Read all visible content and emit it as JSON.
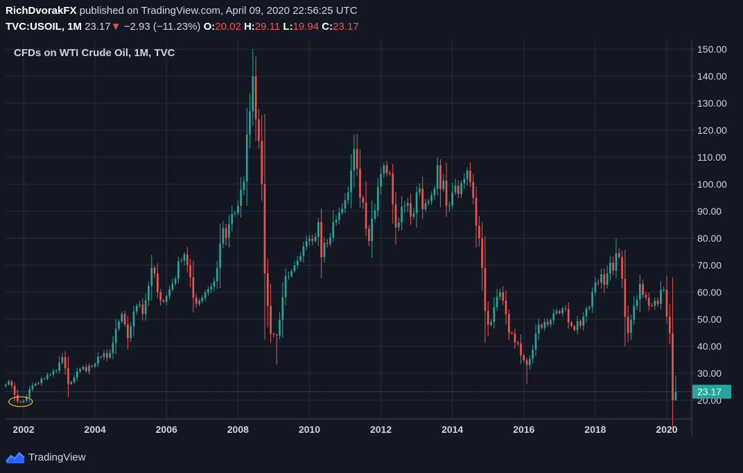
{
  "header": {
    "author": "RichDvorakFX",
    "published_text": "published on TradingView.com, April 09, 2020 22:56:25 UTC",
    "symbol": "TVC:USOIL, 1M",
    "last": "23.17",
    "change_arrow": "▼",
    "change": "−2.93 (−11.23%)",
    "open_label": "O:",
    "open_value": "20.02",
    "high_label": "H:",
    "high_value": "29.11",
    "low_label": "L:",
    "low_value": "19.94",
    "close_label": "C:",
    "close_value": "23.17"
  },
  "footer": {
    "brand": "TradingView",
    "logo_icon": "tradingview-logo-icon"
  },
  "colors": {
    "background": "#131722",
    "up": "#26a69a",
    "down": "#ef5350",
    "grid": "#2a2e39",
    "text": "#d1d4dc",
    "price_line": "#26a69a",
    "annotation_ellipse": "#f0c419"
  },
  "chart_data": {
    "type": "candlestick",
    "title": "CFDs on WTI Crude Oil, 1M, TVC",
    "interval": "monthly",
    "x_range": [
      "2001-07",
      "2020-08"
    ],
    "ylim": [
      13,
      154
    ],
    "y_ticks": [
      20,
      30,
      40,
      50,
      60,
      70,
      80,
      90,
      100,
      110,
      120,
      130,
      140,
      150
    ],
    "y_tick_labels": [
      "20.00",
      "30.00",
      "40.00",
      "50.00",
      "60.00",
      "70.00",
      "80.00",
      "90.00",
      "100.00",
      "110.00",
      "120.00",
      "130.00",
      "140.00",
      "150.00"
    ],
    "x_ticks": [
      "2002",
      "2004",
      "2006",
      "2008",
      "2010",
      "2012",
      "2014",
      "2016",
      "2018",
      "2020"
    ],
    "last_price": 23.17,
    "last_price_label": "23.17",
    "grid": true,
    "annotation": {
      "type": "ellipse",
      "around": "2001-11 to 2002-01 lows (~17–19)"
    },
    "anchors": [
      [
        "2001-08",
        27
      ],
      [
        "2001-10",
        22
      ],
      [
        "2001-11",
        19.5
      ],
      [
        "2002-01",
        19.8
      ],
      [
        "2002-04",
        25.5
      ],
      [
        "2002-08",
        28
      ],
      [
        "2002-12",
        31
      ],
      [
        "2003-02",
        36
      ],
      [
        "2003-04",
        26
      ],
      [
        "2003-08",
        31.5
      ],
      [
        "2003-12",
        32.5
      ],
      [
        "2004-03",
        36
      ],
      [
        "2004-06",
        37.5
      ],
      [
        "2004-10",
        52
      ],
      [
        "2004-12",
        43
      ],
      [
        "2005-03",
        55
      ],
      [
        "2005-05",
        52
      ],
      [
        "2005-08",
        69
      ],
      [
        "2005-11",
        57
      ],
      [
        "2006-02",
        61
      ],
      [
        "2006-07",
        74
      ],
      [
        "2006-10",
        58
      ],
      [
        "2007-01",
        58
      ],
      [
        "2007-05",
        64
      ],
      [
        "2007-07",
        78
      ],
      [
        "2007-11",
        89
      ],
      [
        "2008-01",
        92
      ],
      [
        "2008-03",
        101
      ],
      [
        "2008-05",
        127
      ],
      [
        "2008-06",
        140
      ],
      [
        "2008-07",
        124
      ],
      [
        "2008-08",
        116
      ],
      [
        "2008-09",
        100
      ],
      [
        "2008-10",
        67
      ],
      [
        "2008-11",
        55
      ],
      [
        "2008-12",
        44.6
      ],
      [
        "2009-02",
        44
      ],
      [
        "2009-05",
        66
      ],
      [
        "2009-08",
        70
      ],
      [
        "2009-12",
        79
      ],
      [
        "2010-02",
        79
      ],
      [
        "2010-04",
        86
      ],
      [
        "2010-05",
        73
      ],
      [
        "2010-07",
        78
      ],
      [
        "2010-12",
        91
      ],
      [
        "2011-02",
        97
      ],
      [
        "2011-04",
        113
      ],
      [
        "2011-06",
        95
      ],
      [
        "2011-09",
        79
      ],
      [
        "2011-12",
        99
      ],
      [
        "2012-02",
        107
      ],
      [
        "2012-04",
        104
      ],
      [
        "2012-06",
        84
      ],
      [
        "2012-09",
        92
      ],
      [
        "2012-11",
        88
      ],
      [
        "2013-01",
        97
      ],
      [
        "2013-04",
        93
      ],
      [
        "2013-06",
        96
      ],
      [
        "2013-08",
        107
      ],
      [
        "2013-11",
        92
      ],
      [
        "2014-01",
        97
      ],
      [
        "2014-05",
        102
      ],
      [
        "2014-06",
        105
      ],
      [
        "2014-08",
        95
      ],
      [
        "2014-10",
        80
      ],
      [
        "2014-12",
        53
      ],
      [
        "2015-01",
        48
      ],
      [
        "2015-02",
        49
      ],
      [
        "2015-05",
        60
      ],
      [
        "2015-08",
        45
      ],
      [
        "2015-11",
        41
      ],
      [
        "2016-02",
        33
      ],
      [
        "2016-06",
        48
      ],
      [
        "2016-09",
        48
      ],
      [
        "2016-12",
        53
      ],
      [
        "2017-02",
        54
      ],
      [
        "2017-06",
        46
      ],
      [
        "2017-09",
        51
      ],
      [
        "2017-12",
        60
      ],
      [
        "2018-05",
        67
      ],
      [
        "2018-09",
        73
      ],
      [
        "2018-10",
        65
      ],
      [
        "2018-11",
        51
      ],
      [
        "2018-12",
        45
      ],
      [
        "2019-04",
        63
      ],
      [
        "2019-06",
        58
      ],
      [
        "2019-08",
        55
      ],
      [
        "2019-12",
        61
      ],
      [
        "2020-01",
        51
      ],
      [
        "2020-02",
        44.8
      ],
      [
        "2020-03",
        20
      ],
      [
        "2020-04",
        23.17
      ]
    ]
  }
}
